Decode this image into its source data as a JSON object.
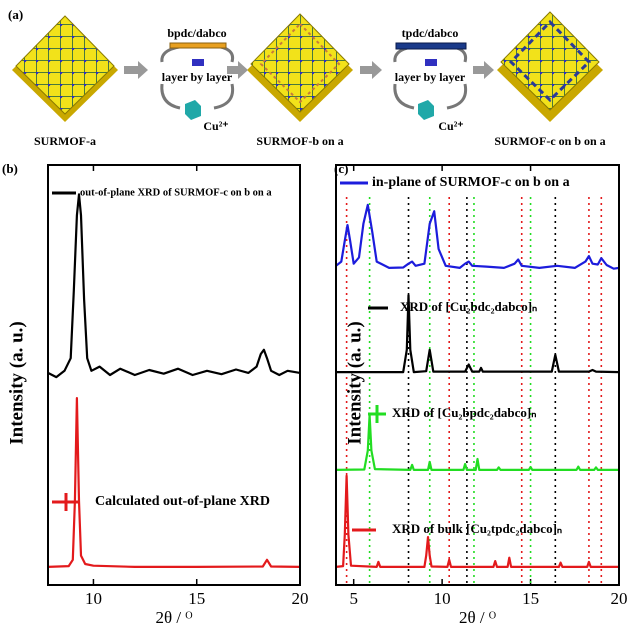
{
  "schematic": {
    "panel_label": "(a)",
    "stage_a": "SURMOF-a",
    "stage_b": "SURMOF-b on a",
    "stage_c": "SURMOF-c on b on a",
    "step1_linker": "bpdc/dabco",
    "step1_method": "layer by layer",
    "step1_metal": "Cu²⁺",
    "step2_linker": "tpdc/dabco",
    "step2_method": "layer by layer",
    "step2_metal": "Cu²⁺"
  },
  "chart_data": [
    {
      "type": "line",
      "panel_label": "(b)",
      "x_label": "2θ / ᴼ",
      "y_label": "Intensity (a. u.)",
      "xlim": [
        7.8,
        20
      ],
      "xticks": [
        10,
        15,
        20
      ],
      "ylim": [
        0,
        100
      ],
      "series": [
        {
          "name": "out-of-plane XRD of SURMOF-c on b on a",
          "color": "#000000",
          "x": [
            7.8,
            8.2,
            8.6,
            8.9,
            9.05,
            9.2,
            9.3,
            9.4,
            9.55,
            9.7,
            9.9,
            10.3,
            10.8,
            11.3,
            12,
            12.7,
            13.4,
            14.1,
            14.8,
            15.5,
            16.2,
            16.9,
            17.5,
            17.9,
            18.1,
            18.25,
            18.4,
            18.6,
            19,
            19.4,
            20
          ],
          "values": [
            50.5,
            49.5,
            51,
            54,
            70,
            88,
            93,
            88,
            68,
            54,
            51,
            52,
            50,
            51.5,
            50,
            51.2,
            50.3,
            51.5,
            50,
            51,
            50.2,
            51.3,
            50.5,
            52,
            55,
            56,
            54,
            51,
            50,
            51,
            50.5
          ]
        },
        {
          "name": "Calculated out-of-plane XRD",
          "color": "#e31a1c",
          "x": [
            7.8,
            8.8,
            9.0,
            9.1,
            9.2,
            9.3,
            9.4,
            9.6,
            10,
            12,
            15,
            18.2,
            18.4,
            18.6,
            20
          ],
          "values": [
            4.3,
            4.5,
            6,
            20,
            44.5,
            20,
            7,
            5,
            4.6,
            4.3,
            4.3,
            4.4,
            6,
            4.4,
            4.3
          ]
        }
      ]
    },
    {
      "type": "line",
      "panel_label": "(c)",
      "x_label": "2θ / ᴼ",
      "y_label": "Intensity (a. u.)",
      "xlim": [
        4.0,
        20
      ],
      "xticks": [
        5,
        10,
        15,
        20
      ],
      "ylim": [
        0,
        100
      ],
      "series": [
        {
          "name": "in-plane of SURMOF-c on b on a",
          "color": "#1c1cdc",
          "x": [
            4.0,
            4.3,
            4.5,
            4.65,
            4.8,
            5.0,
            5.3,
            5.55,
            5.8,
            6.05,
            6.3,
            7,
            7.8,
            8.1,
            8.3,
            8.5,
            9.0,
            9.3,
            9.55,
            9.8,
            10.2,
            11,
            11.3,
            11.5,
            11.7,
            12.5,
            13.5,
            14.1,
            14.3,
            14.5,
            15.5,
            16.5,
            17.5,
            18.1,
            18.3,
            18.5,
            18.8,
            19.0,
            19.3,
            19.7,
            20
          ],
          "values": [
            76,
            77,
            82,
            85.7,
            82,
            76.5,
            78,
            86,
            90.5,
            84,
            77,
            75.5,
            75.6,
            76.5,
            77,
            76,
            76.5,
            86,
            89,
            80,
            76,
            75.5,
            76.5,
            77,
            76,
            75.8,
            75.5,
            76.5,
            77.5,
            76,
            75.5,
            76,
            75.5,
            77,
            78.3,
            76.5,
            76.3,
            77.8,
            76.2,
            75.3,
            75.5
          ]
        },
        {
          "name": "XRD of [Cu₂bdc₂dabco]ₙ",
          "color": "#000000",
          "x": [
            4,
            7.8,
            8.0,
            8.1,
            8.2,
            8.4,
            9.1,
            9.3,
            9.5,
            11.3,
            11.5,
            11.7,
            12.1,
            12.2,
            12.3,
            16.2,
            16.4,
            16.6,
            18.3,
            18.5,
            18.7,
            20
          ],
          "values": [
            50.7,
            50.7,
            56,
            69,
            56,
            50.7,
            50.9,
            56,
            50.8,
            50.8,
            52.5,
            50.8,
            50.8,
            51.7,
            50.8,
            50.8,
            54.8,
            50.8,
            50.8,
            51.2,
            50.8,
            50.7
          ]
        },
        {
          "name": "XRD of [Cu₂bpdc₂dabco]ₙ",
          "color": "#22dd22",
          "x": [
            4,
            5.6,
            5.8,
            5.9,
            6.0,
            6.2,
            8.2,
            8.3,
            8.4,
            9.2,
            9.3,
            9.4,
            11.2,
            11.3,
            11.4,
            11.9,
            12,
            12.1,
            13.1,
            13.2,
            13.3,
            14.9,
            15,
            15.1,
            17.6,
            17.7,
            17.8,
            18.6,
            18.7,
            18.8,
            20
          ],
          "values": [
            27.4,
            27.5,
            32,
            40.5,
            32,
            27.6,
            27.4,
            28.6,
            27.4,
            27.4,
            29.3,
            27.4,
            27.4,
            28.8,
            27.4,
            27.4,
            30,
            27.4,
            27.4,
            28,
            27.4,
            27.4,
            28.1,
            27.4,
            27.4,
            28.2,
            27.4,
            27.4,
            28,
            27.4,
            27.4
          ]
        },
        {
          "name": "XRD of bulk [Cu₂tpdc₂dabco]ₙ",
          "color": "#e31a1c",
          "x": [
            4,
            4.4,
            4.5,
            4.6,
            4.7,
            4.85,
            6.3,
            6.4,
            6.5,
            9.0,
            9.1,
            9.2,
            9.3,
            9.4,
            10.3,
            10.4,
            10.5,
            12.9,
            13,
            13.1,
            13.7,
            13.8,
            13.9,
            16.6,
            16.7,
            16.8,
            18.2,
            18.3,
            18.4,
            20
          ],
          "values": [
            4.3,
            4.5,
            12,
            26,
            12,
            4.6,
            4.3,
            5.5,
            4.3,
            4.3,
            7,
            11.4,
            7,
            4.4,
            4.3,
            6,
            4.3,
            4.3,
            5.7,
            4.3,
            4.3,
            6.5,
            4.3,
            4.3,
            5.3,
            4.3,
            4.3,
            5.5,
            4.3,
            4.3
          ]
        }
      ],
      "reference_lines": [
        {
          "x": 4.6,
          "color": "#e31a1c"
        },
        {
          "x": 10.4,
          "color": "#e31a1c"
        },
        {
          "x": 14.5,
          "color": "#e31a1c"
        },
        {
          "x": 18.3,
          "color": "#e31a1c"
        },
        {
          "x": 19.0,
          "color": "#e31a1c"
        },
        {
          "x": 5.9,
          "color": "#22dd22"
        },
        {
          "x": 9.3,
          "color": "#22dd22"
        },
        {
          "x": 11.8,
          "color": "#22dd22"
        },
        {
          "x": 15.0,
          "color": "#22dd22"
        },
        {
          "x": 8.1,
          "color": "#000000"
        },
        {
          "x": 11.4,
          "color": "#000000"
        },
        {
          "x": 16.4,
          "color": "#000000"
        }
      ]
    }
  ]
}
